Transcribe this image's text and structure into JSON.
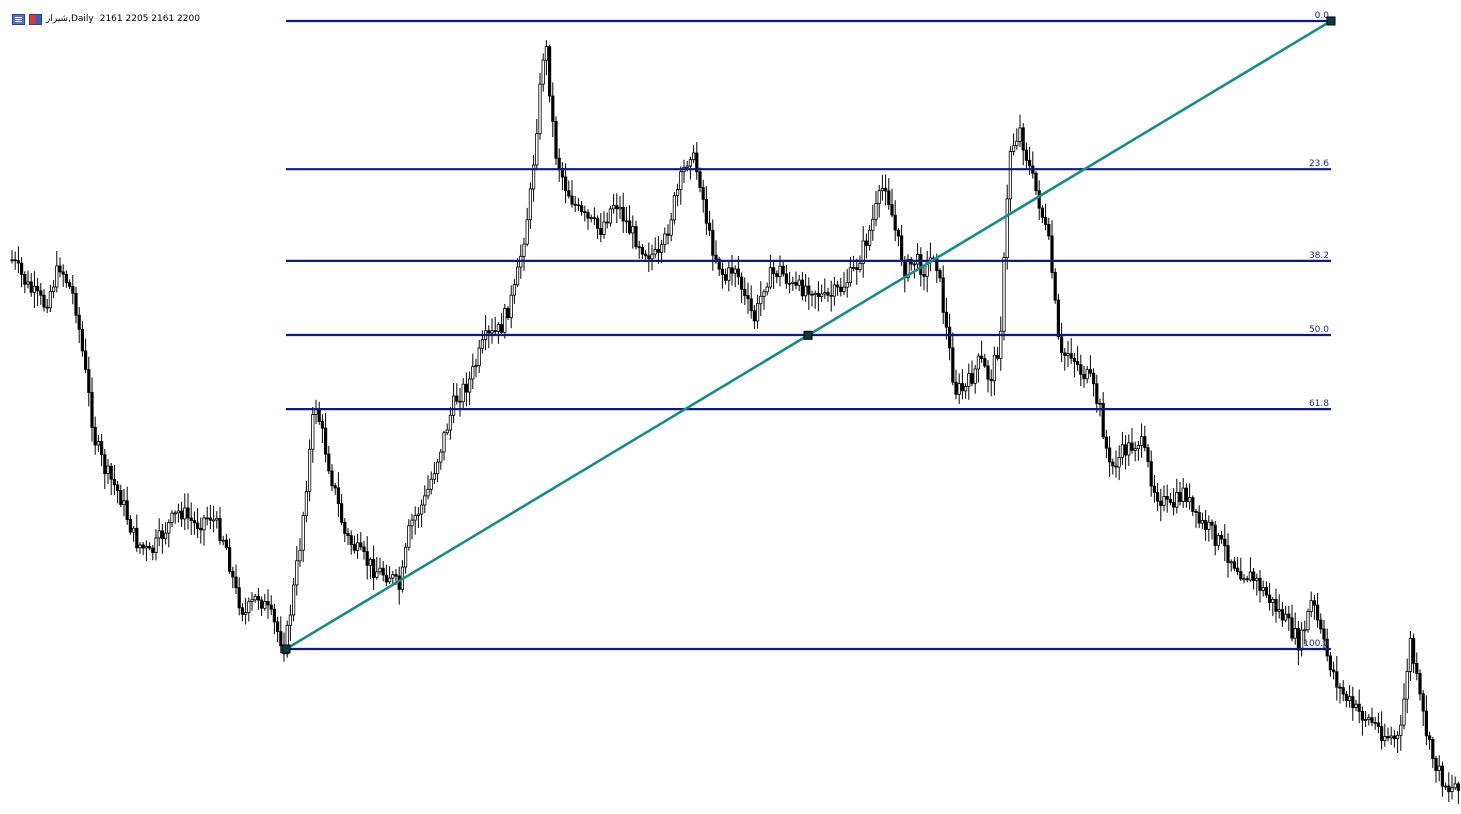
{
  "header": {
    "symbol": "شیراز",
    "timeframe": "Daily",
    "ohlc": "2161 2205 2161 2200",
    "icons": [
      "table-icon",
      "chart-type-icon"
    ]
  },
  "chart_data": {
    "type": "candlestick",
    "series_color": "#000000",
    "background": "#ffffff",
    "grid": false,
    "legend": "none",
    "fibonacci": {
      "color": "#0d1a7e",
      "trend_line_color": "#1a8a8a",
      "levels": [
        {
          "level": 0.0,
          "label": "0.0"
        },
        {
          "level": 23.6,
          "label": "23.6"
        },
        {
          "level": 38.2,
          "label": "38.2"
        },
        {
          "level": 50.0,
          "label": "50.0"
        },
        {
          "level": 61.8,
          "label": "61.8"
        },
        {
          "level": 100.0,
          "label": "100.0"
        }
      ]
    },
    "price_path": [
      [
        12,
        260
      ],
      [
        30,
        290
      ],
      [
        45,
        305
      ],
      [
        60,
        265
      ],
      [
        75,
        300
      ],
      [
        85,
        370
      ],
      [
        95,
        440
      ],
      [
        105,
        470
      ],
      [
        120,
        495
      ],
      [
        135,
        540
      ],
      [
        150,
        555
      ],
      [
        165,
        530
      ],
      [
        180,
        510
      ],
      [
        195,
        525
      ],
      [
        210,
        515
      ],
      [
        225,
        540
      ],
      [
        235,
        590
      ],
      [
        245,
        615
      ],
      [
        258,
        595
      ],
      [
        270,
        615
      ],
      [
        285,
        648
      ],
      [
        300,
        545
      ],
      [
        315,
        400
      ],
      [
        330,
        470
      ],
      [
        345,
        535
      ],
      [
        360,
        555
      ],
      [
        375,
        570
      ],
      [
        390,
        575
      ],
      [
        400,
        590
      ],
      [
        410,
        525
      ],
      [
        425,
        500
      ],
      [
        440,
        450
      ],
      [
        455,
        400
      ],
      [
        470,
        380
      ],
      [
        485,
        340
      ],
      [
        500,
        330
      ],
      [
        515,
        290
      ],
      [
        530,
        200
      ],
      [
        545,
        35
      ],
      [
        555,
        150
      ],
      [
        565,
        185
      ],
      [
        580,
        215
      ],
      [
        600,
        230
      ],
      [
        615,
        200
      ],
      [
        630,
        230
      ],
      [
        645,
        250
      ],
      [
        660,
        260
      ],
      [
        675,
        200
      ],
      [
        690,
        150
      ],
      [
        700,
        180
      ],
      [
        710,
        240
      ],
      [
        725,
        280
      ],
      [
        735,
        265
      ],
      [
        745,
        300
      ],
      [
        755,
        320
      ],
      [
        765,
        280
      ],
      [
        780,
        270
      ],
      [
        795,
        290
      ],
      [
        810,
        285
      ],
      [
        825,
        300
      ],
      [
        840,
        290
      ],
      [
        855,
        270
      ],
      [
        870,
        230
      ],
      [
        885,
        180
      ],
      [
        895,
        230
      ],
      [
        905,
        270
      ],
      [
        915,
        260
      ],
      [
        925,
        270
      ],
      [
        935,
        250
      ],
      [
        945,
        320
      ],
      [
        955,
        390
      ],
      [
        965,
        390
      ],
      [
        980,
        360
      ],
      [
        990,
        380
      ],
      [
        1000,
        340
      ],
      [
        1010,
        150
      ],
      [
        1020,
        130
      ],
      [
        1030,
        170
      ],
      [
        1040,
        205
      ],
      [
        1050,
        250
      ],
      [
        1060,
        360
      ],
      [
        1070,
        350
      ],
      [
        1080,
        370
      ],
      [
        1090,
        380
      ],
      [
        1100,
        410
      ],
      [
        1110,
        470
      ],
      [
        1125,
        450
      ],
      [
        1140,
        440
      ],
      [
        1155,
        490
      ],
      [
        1170,
        510
      ],
      [
        1185,
        490
      ],
      [
        1195,
        520
      ],
      [
        1210,
        530
      ],
      [
        1225,
        550
      ],
      [
        1240,
        570
      ],
      [
        1255,
        580
      ],
      [
        1270,
        600
      ],
      [
        1285,
        620
      ],
      [
        1300,
        645
      ],
      [
        1312,
        600
      ],
      [
        1325,
        650
      ],
      [
        1340,
        690
      ],
      [
        1355,
        710
      ],
      [
        1370,
        720
      ],
      [
        1385,
        735
      ],
      [
        1400,
        740
      ],
      [
        1410,
        640
      ],
      [
        1420,
        700
      ],
      [
        1430,
        750
      ],
      [
        1440,
        775
      ],
      [
        1450,
        790
      ],
      [
        1460,
        780
      ]
    ],
    "notes": "Rendered daily candlesticks; values read off the price path with Fibonacci retracement levels 0.0 to 100.0 drawn between swing low and swing high."
  }
}
